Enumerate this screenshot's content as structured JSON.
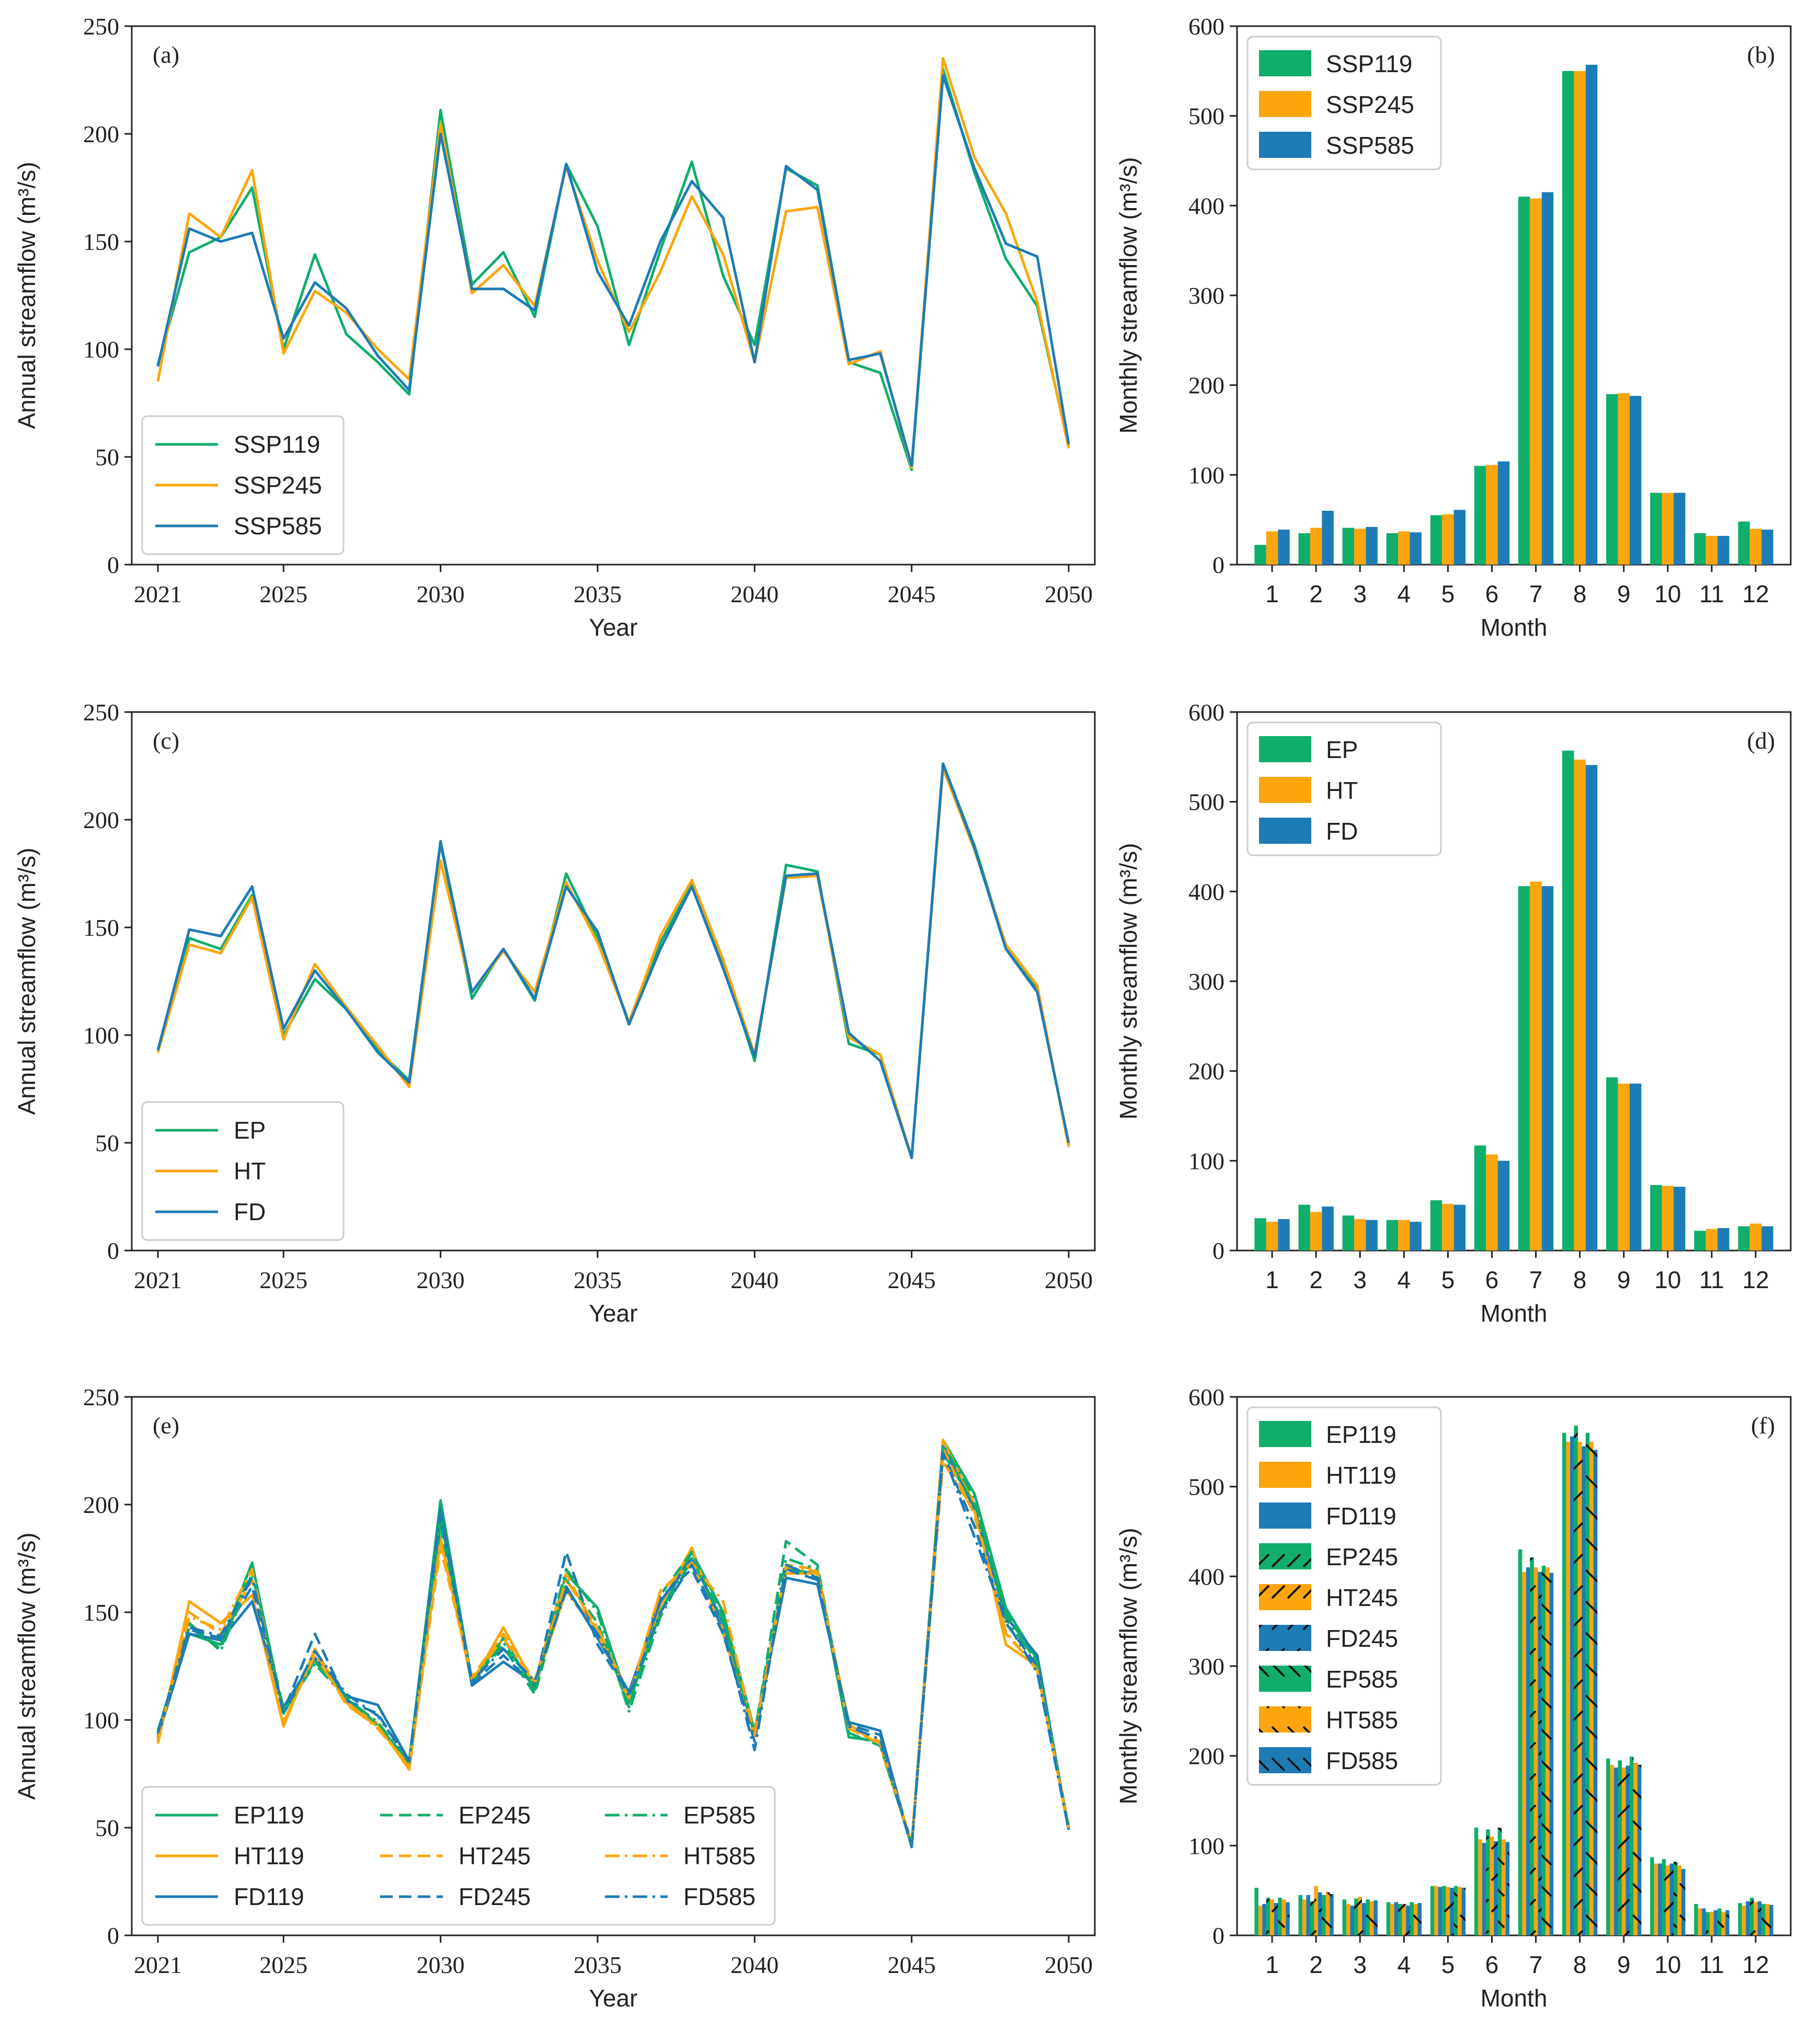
{
  "colors": {
    "green": "#0FAE6B",
    "orange": "#FCA50D",
    "blue": "#1D7CB6"
  },
  "panels": [
    {
      "label": "(a)"
    },
    {
      "label": "(b)"
    },
    {
      "label": "(c)"
    },
    {
      "label": "(d)"
    },
    {
      "label": "(e)"
    },
    {
      "label": "(f)"
    }
  ],
  "chart_data": [
    {
      "panel": "(a)",
      "type": "line",
      "xlabel": "Year",
      "ylabel": "Annual streamflow (m³/s)",
      "xlim": [
        2021,
        2050
      ],
      "ylim": [
        0,
        250
      ],
      "xticks": [
        2021,
        2025,
        2030,
        2035,
        2040,
        2045,
        2050
      ],
      "yticks": [
        0,
        50,
        100,
        150,
        200,
        250
      ],
      "legend_position": "lower-left",
      "x": [
        2021,
        2022,
        2023,
        2024,
        2025,
        2026,
        2027,
        2028,
        2029,
        2030,
        2031,
        2032,
        2033,
        2034,
        2035,
        2036,
        2037,
        2038,
        2039,
        2040,
        2041,
        2042,
        2043,
        2044,
        2045,
        2046,
        2047,
        2048,
        2049,
        2050
      ],
      "series": [
        {
          "name": "SSP119",
          "color": "green",
          "dash": "solid",
          "values": [
            93,
            145,
            152,
            175,
            100,
            144,
            107,
            94,
            79,
            211,
            130,
            145,
            115,
            186,
            157,
            102,
            146,
            187,
            134,
            102,
            184,
            176,
            94,
            89,
            44,
            230,
            182,
            142,
            120,
            55
          ]
        },
        {
          "name": "SSP245",
          "color": "orange",
          "dash": "solid",
          "values": [
            85,
            163,
            152,
            183,
            98,
            127,
            117,
            100,
            86,
            205,
            126,
            139,
            120,
            185,
            141,
            108,
            136,
            171,
            144,
            94,
            164,
            166,
            93,
            99,
            45,
            235,
            189,
            163,
            122,
            54
          ]
        },
        {
          "name": "SSP585",
          "color": "blue",
          "dash": "solid",
          "values": [
            92,
            156,
            150,
            154,
            105,
            131,
            119,
            97,
            81,
            200,
            128,
            128,
            118,
            186,
            136,
            111,
            150,
            178,
            161,
            94,
            185,
            174,
            95,
            98,
            46,
            227,
            184,
            149,
            143,
            56
          ]
        }
      ]
    },
    {
      "panel": "(b)",
      "type": "bar",
      "xlabel": "Month",
      "ylabel": "Monthly streamflow (m³/s)",
      "ylim": [
        0,
        600
      ],
      "yticks": [
        0,
        100,
        200,
        300,
        400,
        500,
        600
      ],
      "legend_position": "top-left",
      "categories": [
        "1",
        "2",
        "3",
        "4",
        "5",
        "6",
        "7",
        "8",
        "9",
        "10",
        "11",
        "12"
      ],
      "series": [
        {
          "name": "SSP119",
          "color": "green",
          "hatch": "none",
          "values": [
            22,
            35,
            41,
            35,
            55,
            110,
            410,
            550,
            190,
            80,
            35,
            48
          ]
        },
        {
          "name": "SSP245",
          "color": "orange",
          "hatch": "none",
          "values": [
            37,
            41,
            40,
            37,
            56,
            111,
            408,
            550,
            191,
            80,
            32,
            40
          ]
        },
        {
          "name": "SSP585",
          "color": "blue",
          "hatch": "none",
          "values": [
            39,
            60,
            42,
            36,
            61,
            115,
            415,
            557,
            188,
            80,
            32,
            39
          ]
        }
      ]
    },
    {
      "panel": "(c)",
      "type": "line",
      "xlabel": "Year",
      "ylabel": "Annual streamflow (m³/s)",
      "xlim": [
        2021,
        2050
      ],
      "ylim": [
        0,
        250
      ],
      "xticks": [
        2021,
        2025,
        2030,
        2035,
        2040,
        2045,
        2050
      ],
      "yticks": [
        0,
        50,
        100,
        150,
        200,
        250
      ],
      "legend_position": "lower-left",
      "x": [
        2021,
        2022,
        2023,
        2024,
        2025,
        2026,
        2027,
        2028,
        2029,
        2030,
        2031,
        2032,
        2033,
        2034,
        2035,
        2036,
        2037,
        2038,
        2039,
        2040,
        2041,
        2042,
        2043,
        2044,
        2045,
        2046,
        2047,
        2048,
        2049,
        2050
      ],
      "series": [
        {
          "name": "EP",
          "color": "green",
          "dash": "solid",
          "values": [
            92,
            145,
            140,
            165,
            100,
            126,
            112,
            93,
            79,
            189,
            117,
            140,
            116,
            175,
            145,
            106,
            143,
            170,
            134,
            88,
            179,
            176,
            96,
            91,
            43,
            226,
            188,
            141,
            121,
            49
          ]
        },
        {
          "name": "HT",
          "color": "orange",
          "dash": "solid",
          "values": [
            92,
            142,
            138,
            164,
            98,
            133,
            113,
            95,
            76,
            181,
            120,
            139,
            120,
            171,
            143,
            106,
            146,
            172,
            135,
            91,
            173,
            174,
            99,
            91,
            43,
            224,
            186,
            142,
            123,
            48
          ]
        },
        {
          "name": "FD",
          "color": "blue",
          "dash": "solid",
          "values": [
            93,
            149,
            146,
            169,
            103,
            130,
            112,
            92,
            78,
            190,
            120,
            140,
            117,
            169,
            148,
            105,
            140,
            169,
            131,
            90,
            174,
            175,
            101,
            88,
            43,
            226,
            187,
            140,
            120,
            50
          ]
        }
      ]
    },
    {
      "panel": "(d)",
      "type": "bar",
      "xlabel": "Month",
      "ylabel": "Monthly streamflow (m³/s)",
      "ylim": [
        0,
        600
      ],
      "yticks": [
        0,
        100,
        200,
        300,
        400,
        500,
        600
      ],
      "legend_position": "top-left",
      "categories": [
        "1",
        "2",
        "3",
        "4",
        "5",
        "6",
        "7",
        "8",
        "9",
        "10",
        "11",
        "12"
      ],
      "series": [
        {
          "name": "EP",
          "color": "green",
          "hatch": "none",
          "values": [
            36,
            51,
            39,
            34,
            56,
            117,
            406,
            557,
            193,
            73,
            22,
            27
          ]
        },
        {
          "name": "HT",
          "color": "orange",
          "hatch": "none",
          "values": [
            32,
            43,
            35,
            34,
            52,
            107,
            411,
            547,
            186,
            72,
            24,
            30
          ]
        },
        {
          "name": "FD",
          "color": "blue",
          "hatch": "none",
          "values": [
            35,
            49,
            34,
            32,
            51,
            100,
            406,
            541,
            186,
            71,
            25,
            27
          ]
        }
      ]
    },
    {
      "panel": "(e)",
      "type": "line",
      "xlabel": "Year",
      "ylabel": "Annual streamflow (m³/s)",
      "xlim": [
        2021,
        2050
      ],
      "ylim": [
        0,
        250
      ],
      "xticks": [
        2021,
        2025,
        2030,
        2035,
        2040,
        2045,
        2050
      ],
      "yticks": [
        0,
        50,
        100,
        150,
        200,
        250
      ],
      "legend_position": "lower-left",
      "x": [
        2021,
        2022,
        2023,
        2024,
        2025,
        2026,
        2027,
        2028,
        2029,
        2030,
        2031,
        2032,
        2033,
        2034,
        2035,
        2036,
        2037,
        2038,
        2039,
        2040,
        2041,
        2042,
        2043,
        2044,
        2045,
        2046,
        2047,
        2048,
        2049,
        2050
      ],
      "series": [
        {
          "name": "EP119",
          "color": "green",
          "dash": "solid",
          "values": [
            95,
            140,
            135,
            173,
            103,
            128,
            110,
            98,
            80,
            202,
            118,
            138,
            114,
            168,
            152,
            108,
            150,
            178,
            150,
            95,
            170,
            168,
            92,
            90,
            42,
            230,
            205,
            152,
            128,
            50
          ]
        },
        {
          "name": "HT119",
          "color": "orange",
          "dash": "solid",
          "values": [
            89,
            155,
            145,
            158,
            97,
            133,
            108,
            98,
            77,
            185,
            117,
            143,
            116,
            160,
            142,
            112,
            153,
            180,
            140,
            95,
            168,
            168,
            98,
            88,
            42,
            230,
            200,
            135,
            125,
            50
          ]
        },
        {
          "name": "FD119",
          "color": "blue",
          "dash": "solid",
          "values": [
            92,
            140,
            137,
            155,
            106,
            129,
            111,
            107,
            81,
            198,
            116,
            127,
            117,
            162,
            138,
            113,
            155,
            175,
            145,
            93,
            166,
            163,
            99,
            95,
            41,
            227,
            198,
            148,
            130,
            49
          ]
        },
        {
          "name": "EP245",
          "color": "green",
          "dash": "dashed",
          "values": [
            95,
            143,
            133,
            170,
            105,
            127,
            111,
            97,
            80,
            190,
            119,
            134,
            112,
            165,
            145,
            106,
            158,
            178,
            148,
            93,
            183,
            172,
            93,
            89,
            42,
            224,
            200,
            150,
            126,
            50
          ]
        },
        {
          "name": "HT245",
          "color": "orange",
          "dash": "dashed",
          "values": [
            90,
            150,
            140,
            165,
            98,
            132,
            107,
            97,
            78,
            180,
            120,
            140,
            118,
            168,
            140,
            110,
            160,
            172,
            142,
            90,
            172,
            170,
            97,
            90,
            43,
            226,
            195,
            140,
            124,
            51
          ]
        },
        {
          "name": "FD245",
          "color": "blue",
          "dash": "dashed",
          "values": [
            93,
            142,
            138,
            162,
            104,
            140,
            109,
            103,
            80,
            194,
            117,
            130,
            116,
            178,
            135,
            112,
            157,
            170,
            140,
            90,
            170,
            165,
            98,
            93,
            42,
            224,
            190,
            145,
            125,
            49
          ]
        },
        {
          "name": "EP585",
          "color": "green",
          "dash": "dashdot",
          "values": [
            94,
            145,
            132,
            168,
            104,
            126,
            110,
            99,
            80,
            195,
            118,
            136,
            115,
            170,
            150,
            104,
            148,
            175,
            146,
            94,
            175,
            170,
            94,
            88,
            42,
            228,
            203,
            147,
            127,
            50
          ]
        },
        {
          "name": "HT585",
          "color": "orange",
          "dash": "dashdot",
          "values": [
            91,
            148,
            142,
            170,
            99,
            130,
            108,
            96,
            79,
            183,
            119,
            138,
            117,
            165,
            143,
            110,
            160,
            173,
            155,
            93,
            171,
            169,
            96,
            89,
            43,
            220,
            197,
            141,
            123,
            50
          ]
        },
        {
          "name": "FD585",
          "color": "blue",
          "dash": "dashdot",
          "values": [
            94,
            143,
            139,
            166,
            103,
            132,
            112,
            102,
            81,
            197,
            118,
            133,
            118,
            160,
            140,
            111,
            150,
            172,
            142,
            86,
            172,
            166,
            97,
            91,
            41,
            224,
            185,
            146,
            122,
            49
          ]
        }
      ]
    },
    {
      "panel": "(f)",
      "type": "bar",
      "xlabel": "Month",
      "ylabel": "Monthly streamflow (m³/s)",
      "ylim": [
        0,
        600
      ],
      "yticks": [
        0,
        100,
        200,
        300,
        400,
        500,
        600
      ],
      "legend_position": "top-left",
      "categories": [
        "1",
        "2",
        "3",
        "4",
        "5",
        "6",
        "7",
        "8",
        "9",
        "10",
        "11",
        "12"
      ],
      "series": [
        {
          "name": "EP119",
          "color": "green",
          "hatch": "none",
          "values": [
            53,
            45,
            40,
            37,
            55,
            120,
            430,
            560,
            197,
            87,
            35,
            36
          ]
        },
        {
          "name": "HT119",
          "color": "orange",
          "hatch": "none",
          "values": [
            33,
            40,
            35,
            35,
            55,
            107,
            405,
            550,
            190,
            80,
            30,
            33
          ]
        },
        {
          "name": "FD119",
          "color": "blue",
          "hatch": "none",
          "values": [
            35,
            45,
            33,
            37,
            54,
            103,
            410,
            556,
            187,
            80,
            30,
            38
          ]
        },
        {
          "name": "EP245",
          "color": "green",
          "hatch": "/",
          "values": [
            42,
            38,
            41,
            35,
            55,
            118,
            421,
            568,
            195,
            85,
            26,
            42
          ]
        },
        {
          "name": "HT245",
          "color": "orange",
          "hatch": "/",
          "values": [
            40,
            55,
            43,
            35,
            54,
            110,
            410,
            550,
            187,
            78,
            26,
            37
          ]
        },
        {
          "name": "FD245",
          "color": "blue",
          "hatch": "/",
          "values": [
            36,
            48,
            36,
            33,
            53,
            105,
            405,
            545,
            189,
            80,
            28,
            38
          ]
        },
        {
          "name": "EP585",
          "color": "green",
          "hatch": "\\",
          "values": [
            42,
            45,
            40,
            37,
            55,
            120,
            412,
            560,
            199,
            82,
            30,
            35
          ]
        },
        {
          "name": "HT585",
          "color": "orange",
          "hatch": "\\",
          "values": [
            40,
            48,
            38,
            35,
            54,
            107,
            410,
            550,
            192,
            78,
            26,
            35
          ]
        },
        {
          "name": "FD585",
          "color": "blue",
          "hatch": "\\",
          "values": [
            37,
            46,
            39,
            36,
            53,
            104,
            404,
            541,
            190,
            74,
            28,
            34
          ]
        }
      ]
    }
  ]
}
